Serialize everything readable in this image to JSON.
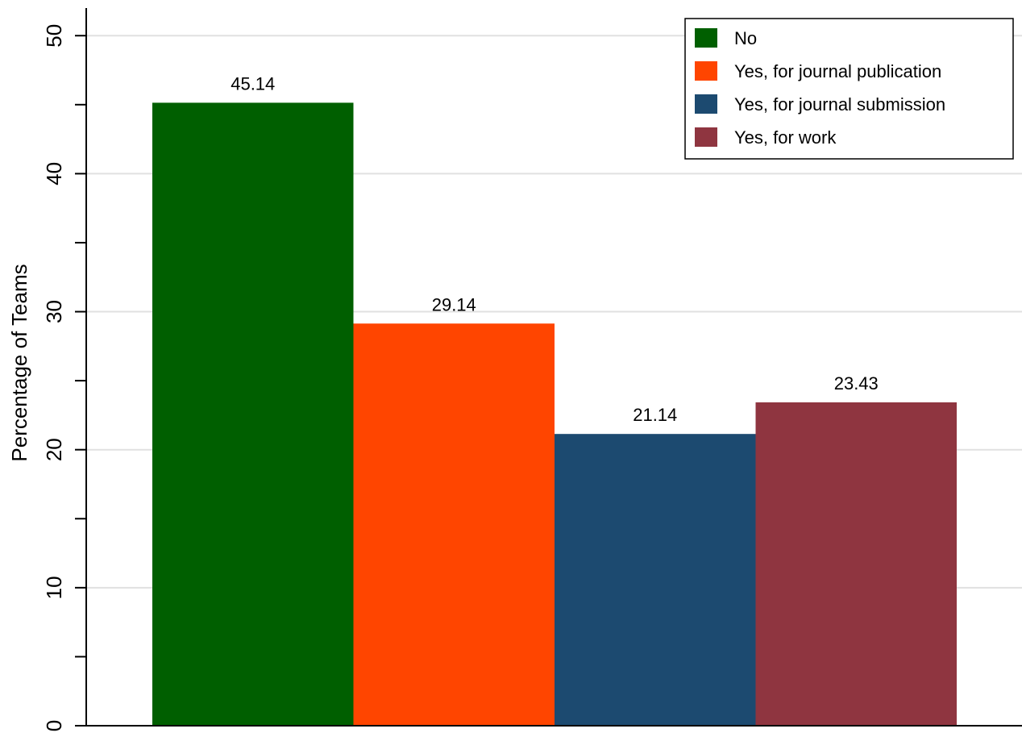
{
  "chart_data": {
    "type": "bar",
    "title": "",
    "xlabel": "",
    "ylabel": "Percentage of Teams",
    "ylim": [
      0,
      52
    ],
    "yticks": [
      0,
      10,
      20,
      30,
      40,
      50
    ],
    "yticks_minor": [
      5,
      15,
      25,
      35,
      45
    ],
    "grid": true,
    "legend_position": "top-right",
    "series": [
      {
        "name": "No",
        "value": 45.14,
        "label": "45.14",
        "color": "#005f00"
      },
      {
        "name": "Yes, for journal publication",
        "value": 29.14,
        "label": "29.14",
        "color": "#ff4500"
      },
      {
        "name": "Yes, for journal submission",
        "value": 21.14,
        "label": "21.14",
        "color": "#1c4a70"
      },
      {
        "name": "Yes, for work",
        "value": 23.43,
        "label": "23.43",
        "color": "#8f3540"
      }
    ]
  }
}
